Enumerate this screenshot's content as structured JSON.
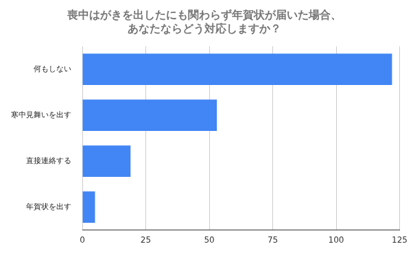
{
  "chart_data": {
    "type": "bar",
    "orientation": "horizontal",
    "title": [
      "喪中はがきを出したにも関わらず年賀状が届いた場合、",
      "あなたならどう対応しますか？"
    ],
    "categories": [
      "何もしない",
      "寒中見舞いを出す",
      "直接連絡する",
      "年賀状を出す"
    ],
    "values": [
      122,
      53,
      19,
      5
    ],
    "color": "#4285f4",
    "xlim": [
      0,
      125
    ],
    "xticks": [
      0,
      25,
      50,
      75,
      100,
      125
    ],
    "grid": true
  }
}
